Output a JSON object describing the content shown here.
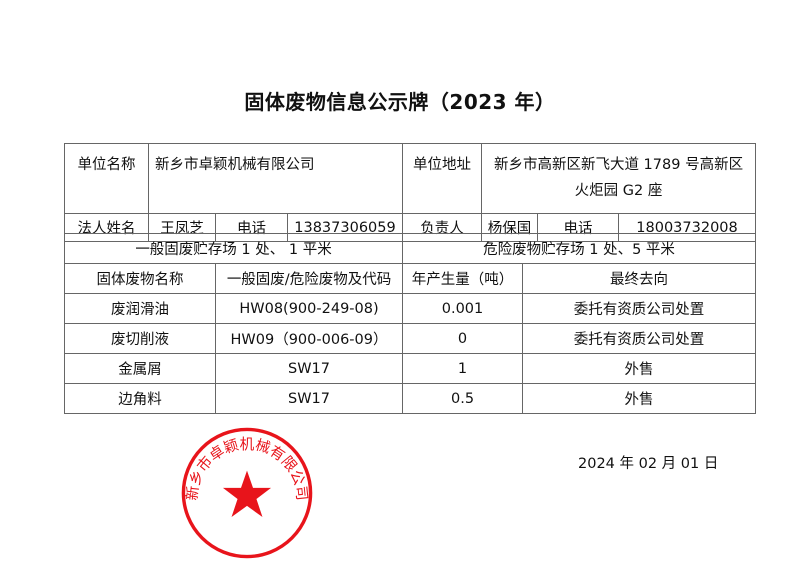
{
  "title": "固体废物信息公示牌（2023 年）",
  "info": {
    "unit_name_label": "单位名称",
    "unit_name": "新乡市卓颖机械有限公司",
    "address_label": "单位地址",
    "address": "新乡市高新区新飞大道 1789 号高新区火炬园 G2 座",
    "legal_person_label": "法人姓名",
    "legal_person": "王凤芝",
    "phone_label": "电话",
    "legal_phone": "13837306059",
    "manager_label": "负责人",
    "manager": "杨保国",
    "manager_phone": "18003732008"
  },
  "storage": {
    "general": "一般固废贮存场 1 处、 1 平米",
    "hazardous": "危险废物贮存场 1 处、5 平米"
  },
  "waste_table": {
    "headers": [
      "固体废物名称",
      "一般固废/危险废物及代码",
      "年产生量（吨）",
      "最终去向"
    ],
    "rows": [
      [
        "废润滑油",
        "HW08(900-249-08)",
        "0.001",
        "委托有资质公司处置"
      ],
      [
        "废切削液",
        "HW09（900-006-09）",
        "0",
        "委托有资质公司处置"
      ],
      [
        "金属屑",
        "SW17",
        "1",
        "外售"
      ],
      [
        "边角料",
        "SW17",
        "0.5",
        "外售"
      ]
    ]
  },
  "date": "2024 年  02  月  01  日",
  "stamp": {
    "text": "新乡市卓颖机械有限公司",
    "color": "#e8141b"
  }
}
